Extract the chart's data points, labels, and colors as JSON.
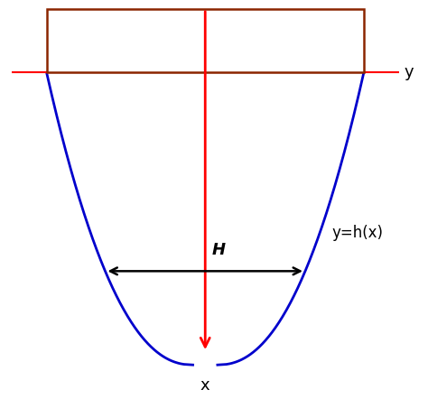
{
  "bg_color": "#ffffff",
  "red_color": "#ff0000",
  "blue_color": "#0000cc",
  "dark_red_color": "#8b2500",
  "black_color": "#000000",
  "label_y": "y",
  "label_x": "x",
  "label_H": "H",
  "label_curve": "y=h(x)",
  "fig_width": 4.74,
  "fig_height": 4.42,
  "dpi": 100
}
